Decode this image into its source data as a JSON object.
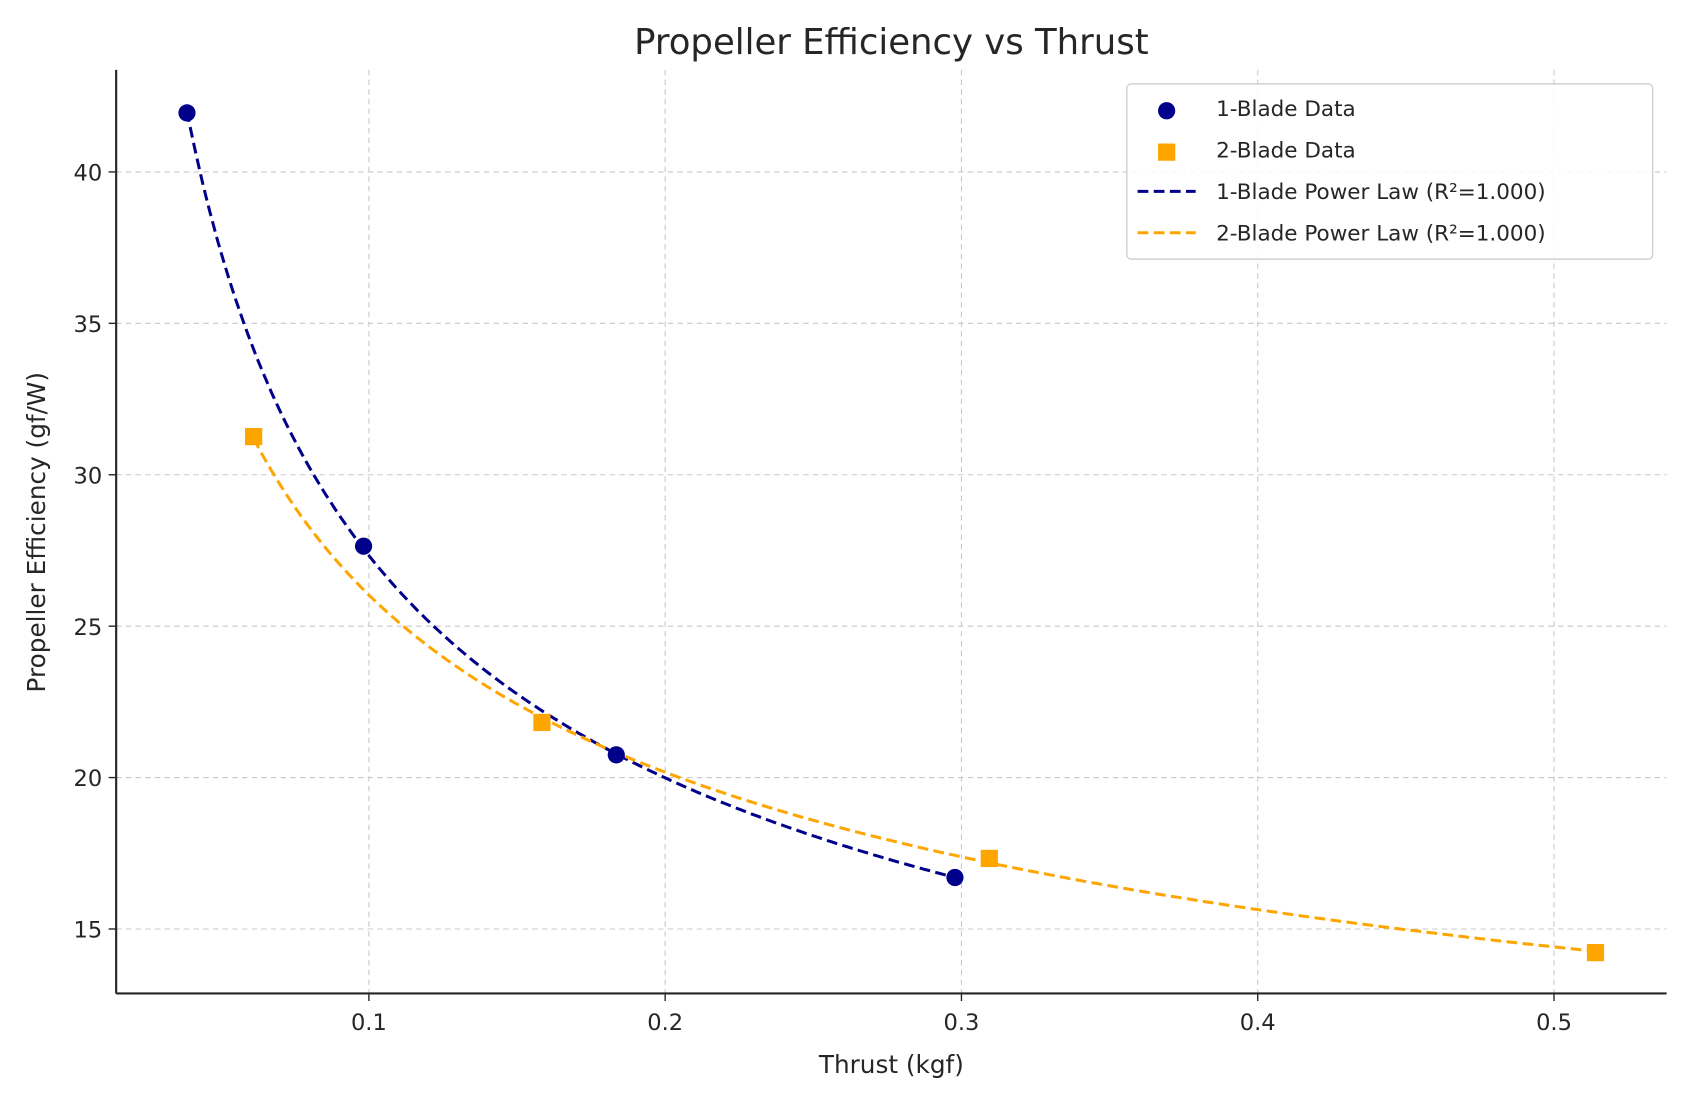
{
  "chart_data": {
    "type": "scatter",
    "title": "Propeller Efficiency vs Thrust",
    "xlabel": "Thrust (kgf)",
    "ylabel": "Propeller Efficiency (gf/W)",
    "xlim": [
      0.0147,
      0.538
    ],
    "ylim": [
      12.87,
      43.37
    ],
    "xticks": [
      0.1,
      0.2,
      0.3,
      0.4,
      0.5
    ],
    "xtick_labels": [
      "0.1",
      "0.2",
      "0.3",
      "0.4",
      "0.5"
    ],
    "yticks": [
      15,
      20,
      25,
      30,
      35,
      40
    ],
    "ytick_labels": [
      "15",
      "20",
      "25",
      "30",
      "35",
      "40"
    ],
    "grid": true,
    "legend_position": "top-right",
    "series": [
      {
        "name": "1-Blade Data",
        "kind": "scatter",
        "marker": "circle",
        "color": "#00008b",
        "x": [
          0.0386,
          0.0982,
          0.1835,
          0.2978
        ],
        "y": [
          41.95,
          27.64,
          20.75,
          16.7
        ]
      },
      {
        "name": "2-Blade Data",
        "kind": "scatter",
        "marker": "square",
        "color": "#ffa500",
        "x": [
          0.0611,
          0.1584,
          0.3094,
          0.514
        ],
        "y": [
          31.26,
          21.82,
          17.33,
          14.22
        ]
      },
      {
        "name": "1-Blade Power Law (R²=1.000)",
        "kind": "fit",
        "fit_of": 0,
        "style": "dashed",
        "color": "#00008b"
      },
      {
        "name": "2-Blade Power Law (R²=1.000)",
        "kind": "fit",
        "fit_of": 1,
        "style": "dashed",
        "color": "#ffa500"
      }
    ]
  }
}
